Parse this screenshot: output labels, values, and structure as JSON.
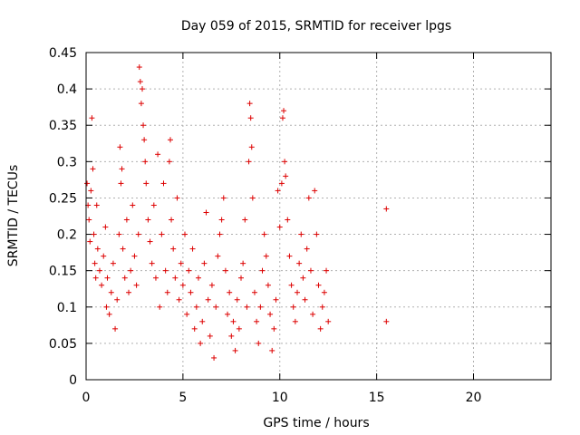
{
  "chart_data": {
    "type": "scatter",
    "title": "Day 059 of 2015, SRMTID for receiver lpgs",
    "xlabel": "GPS time / hours",
    "ylabel": "SRMTID / TECUs",
    "xlim": [
      0,
      24
    ],
    "ylim": [
      0,
      0.45
    ],
    "xticks": [
      0,
      5,
      10,
      15,
      20
    ],
    "xtick_labels": [
      "0",
      "5",
      "10",
      "15",
      "20"
    ],
    "yticks": [
      0,
      0.05,
      0.1,
      0.15,
      0.2,
      0.25,
      0.3,
      0.35,
      0.4,
      0.45
    ],
    "ytick_labels": [
      "0",
      "0.05",
      "0.1",
      "0.15",
      "0.2",
      "0.25",
      "0.3",
      "0.35",
      "0.4",
      "0.45"
    ],
    "grid": true,
    "marker": "+",
    "series": [
      {
        "name": "SRMTID",
        "color": "#dd0000",
        "points": [
          [
            0.05,
            0.27
          ],
          [
            0.1,
            0.24
          ],
          [
            0.15,
            0.22
          ],
          [
            0.2,
            0.19
          ],
          [
            0.25,
            0.26
          ],
          [
            0.3,
            0.36
          ],
          [
            0.35,
            0.29
          ],
          [
            0.4,
            0.2
          ],
          [
            0.45,
            0.16
          ],
          [
            0.5,
            0.14
          ],
          [
            0.55,
            0.24
          ],
          [
            0.6,
            0.18
          ],
          [
            0.7,
            0.15
          ],
          [
            0.8,
            0.13
          ],
          [
            0.9,
            0.17
          ],
          [
            1.0,
            0.21
          ],
          [
            1.05,
            0.1
          ],
          [
            1.1,
            0.14
          ],
          [
            1.2,
            0.09
          ],
          [
            1.3,
            0.12
          ],
          [
            1.4,
            0.16
          ],
          [
            1.5,
            0.07
          ],
          [
            1.6,
            0.11
          ],
          [
            1.7,
            0.2
          ],
          [
            1.75,
            0.32
          ],
          [
            1.8,
            0.27
          ],
          [
            1.85,
            0.29
          ],
          [
            1.9,
            0.18
          ],
          [
            2.0,
            0.14
          ],
          [
            2.1,
            0.22
          ],
          [
            2.2,
            0.12
          ],
          [
            2.3,
            0.15
          ],
          [
            2.4,
            0.24
          ],
          [
            2.5,
            0.17
          ],
          [
            2.6,
            0.13
          ],
          [
            2.7,
            0.2
          ],
          [
            2.75,
            0.43
          ],
          [
            2.8,
            0.41
          ],
          [
            2.85,
            0.38
          ],
          [
            2.9,
            0.4
          ],
          [
            2.95,
            0.35
          ],
          [
            3.0,
            0.33
          ],
          [
            3.05,
            0.3
          ],
          [
            3.1,
            0.27
          ],
          [
            3.2,
            0.22
          ],
          [
            3.3,
            0.19
          ],
          [
            3.4,
            0.16
          ],
          [
            3.5,
            0.24
          ],
          [
            3.6,
            0.14
          ],
          [
            3.7,
            0.31
          ],
          [
            3.8,
            0.1
          ],
          [
            3.9,
            0.2
          ],
          [
            4.0,
            0.27
          ],
          [
            4.1,
            0.15
          ],
          [
            4.2,
            0.12
          ],
          [
            4.3,
            0.3
          ],
          [
            4.35,
            0.33
          ],
          [
            4.4,
            0.22
          ],
          [
            4.5,
            0.18
          ],
          [
            4.6,
            0.14
          ],
          [
            4.7,
            0.25
          ],
          [
            4.8,
            0.11
          ],
          [
            4.9,
            0.16
          ],
          [
            5.0,
            0.13
          ],
          [
            5.1,
            0.2
          ],
          [
            5.2,
            0.09
          ],
          [
            5.3,
            0.15
          ],
          [
            5.4,
            0.12
          ],
          [
            5.5,
            0.18
          ],
          [
            5.6,
            0.07
          ],
          [
            5.7,
            0.1
          ],
          [
            5.8,
            0.14
          ],
          [
            5.9,
            0.05
          ],
          [
            6.0,
            0.08
          ],
          [
            6.1,
            0.16
          ],
          [
            6.2,
            0.23
          ],
          [
            6.3,
            0.11
          ],
          [
            6.4,
            0.06
          ],
          [
            6.5,
            0.13
          ],
          [
            6.6,
            0.03
          ],
          [
            6.7,
            0.1
          ],
          [
            6.8,
            0.17
          ],
          [
            6.9,
            0.2
          ],
          [
            7.0,
            0.22
          ],
          [
            7.1,
            0.25
          ],
          [
            7.2,
            0.15
          ],
          [
            7.3,
            0.09
          ],
          [
            7.4,
            0.12
          ],
          [
            7.5,
            0.06
          ],
          [
            7.6,
            0.08
          ],
          [
            7.7,
            0.04
          ],
          [
            7.8,
            0.11
          ],
          [
            7.9,
            0.07
          ],
          [
            8.0,
            0.14
          ],
          [
            8.1,
            0.16
          ],
          [
            8.2,
            0.22
          ],
          [
            8.3,
            0.1
          ],
          [
            8.4,
            0.3
          ],
          [
            8.45,
            0.38
          ],
          [
            8.5,
            0.36
          ],
          [
            8.55,
            0.32
          ],
          [
            8.6,
            0.25
          ],
          [
            8.7,
            0.12
          ],
          [
            8.8,
            0.08
          ],
          [
            8.9,
            0.05
          ],
          [
            9.0,
            0.1
          ],
          [
            9.1,
            0.15
          ],
          [
            9.2,
            0.2
          ],
          [
            9.3,
            0.17
          ],
          [
            9.4,
            0.13
          ],
          [
            9.5,
            0.09
          ],
          [
            9.6,
            0.04
          ],
          [
            9.7,
            0.07
          ],
          [
            9.8,
            0.11
          ],
          [
            9.9,
            0.26
          ],
          [
            10.0,
            0.21
          ],
          [
            10.1,
            0.27
          ],
          [
            10.15,
            0.36
          ],
          [
            10.2,
            0.37
          ],
          [
            10.25,
            0.3
          ],
          [
            10.3,
            0.28
          ],
          [
            10.4,
            0.22
          ],
          [
            10.5,
            0.17
          ],
          [
            10.6,
            0.13
          ],
          [
            10.7,
            0.1
          ],
          [
            10.8,
            0.08
          ],
          [
            10.9,
            0.12
          ],
          [
            11.0,
            0.16
          ],
          [
            11.1,
            0.2
          ],
          [
            11.2,
            0.14
          ],
          [
            11.3,
            0.11
          ],
          [
            11.4,
            0.18
          ],
          [
            11.5,
            0.25
          ],
          [
            11.6,
            0.15
          ],
          [
            11.7,
            0.09
          ],
          [
            11.8,
            0.26
          ],
          [
            11.9,
            0.2
          ],
          [
            12.0,
            0.13
          ],
          [
            12.1,
            0.07
          ],
          [
            12.2,
            0.1
          ],
          [
            12.3,
            0.12
          ],
          [
            12.4,
            0.15
          ],
          [
            12.5,
            0.08
          ],
          [
            15.5,
            0.235
          ],
          [
            15.5,
            0.08
          ]
        ]
      }
    ]
  }
}
